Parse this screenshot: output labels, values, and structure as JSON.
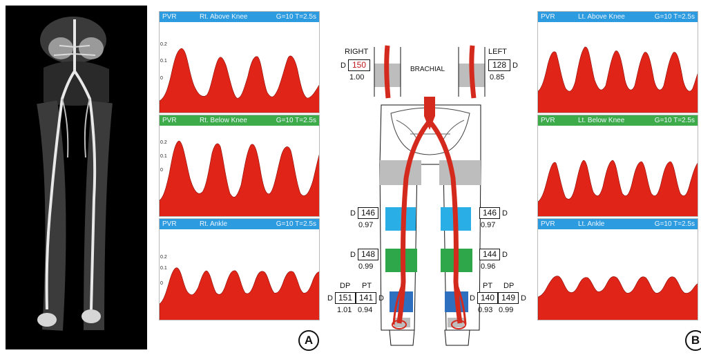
{
  "figure": {
    "panel_labels": {
      "a": "A",
      "b": "B"
    }
  },
  "pvr_panels": [
    {
      "type": "PVR",
      "site": "Rt. Above Knee",
      "gain": "G=10 T=2.5s",
      "header_color": "#2d9be0",
      "y_ticks": [
        "0.2",
        "0.1",
        "0"
      ]
    },
    {
      "type": "PVR",
      "site": "Rt. Below Knee",
      "gain": "G=10 T=2.5s",
      "header_color": "#3dab4a",
      "y_ticks": [
        "0.2",
        "0.1",
        "0"
      ]
    },
    {
      "type": "PVR",
      "site": "Rt. Ankle",
      "gain": "G=10 T=2.5s",
      "header_color": "#2d9be0",
      "y_ticks": [
        "0.2",
        "0.1",
        "0"
      ]
    },
    {
      "type": "PVR",
      "site": "Lt. Above Knee",
      "gain": "G=10 T=2.5s",
      "header_color": "#2d9be0",
      "y_ticks": []
    },
    {
      "type": "PVR",
      "site": "Lt. Below Knee",
      "gain": "G=10 T=2.5s",
      "header_color": "#3dab4a",
      "y_ticks": []
    },
    {
      "type": "PVR",
      "site": "Lt. Ankle",
      "gain": "G=10 T=2.5s",
      "header_color": "#2d9be0",
      "y_ticks": []
    }
  ],
  "diagram": {
    "brachial_label": "BRACHIAL",
    "right": {
      "label": "RIGHT",
      "brachial": {
        "prefix": "D",
        "pressure": "150",
        "index": "1.00",
        "highlight_color": "#c0161a"
      },
      "thigh": {
        "prefix": "D",
        "pressure": "146",
        "index": "0.97"
      },
      "calf": {
        "prefix": "D",
        "pressure": "148",
        "index": "0.99"
      },
      "ankle": {
        "prefix": "D",
        "dp_label": "DP",
        "pt_label": "PT",
        "dp": "151",
        "pt": "141",
        "pt_suffix": "D",
        "dp_index": "1.01",
        "pt_index": "0.94"
      }
    },
    "left": {
      "label": "LEFT",
      "brachial": {
        "suffix": "D",
        "pressure": "128",
        "index": "0.85"
      },
      "thigh": {
        "suffix": "D",
        "pressure": "146",
        "index": "0.97"
      },
      "calf": {
        "suffix": "D",
        "pressure": "144",
        "index": "0.96"
      },
      "ankle": {
        "prefix": "D",
        "pt_label": "PT",
        "dp_label": "DP",
        "pt": "140",
        "dp": "149",
        "dp_suffix": "D",
        "pt_index": "0.93",
        "dp_index": "0.99"
      }
    },
    "cuff_colors": {
      "upper": "#bdbdbd",
      "thigh": "#29aee6",
      "calf": "#2ea64a",
      "ankle": "#2f6fc0",
      "artery": "#d42a1e"
    }
  }
}
